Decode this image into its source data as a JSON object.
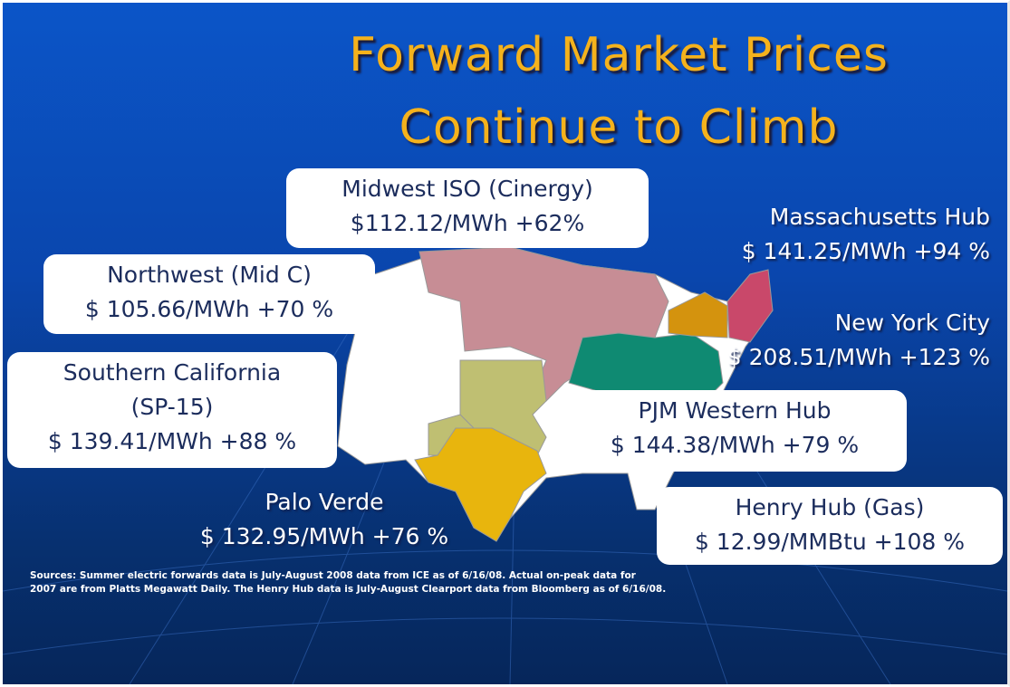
{
  "title": [
    "Forward Market Prices",
    "Continue to Climb"
  ],
  "callouts": [
    {
      "lines": [
        "Midwest ISO (Cinergy)",
        "$112.12/MWh  +62%"
      ]
    },
    {
      "lines": [
        "Massachusetts Hub",
        "$ 141.25/MWh  +94 %"
      ]
    },
    {
      "lines": [
        "Northwest (Mid C)",
        "$ 105.66/MWh  +70 %"
      ]
    },
    {
      "lines": [
        "New York City",
        "$ 208.51/MWh  +123 %"
      ]
    },
    {
      "lines": [
        "Southern California",
        "(SP-15)",
        "$ 139.41/MWh  +88 %"
      ]
    },
    {
      "lines": [
        "PJM Western Hub",
        "$ 144.38/MWh  +79 %"
      ]
    },
    {
      "lines": [
        "Palo Verde",
        "$ 132.95/MWh  +76 %"
      ]
    },
    {
      "lines": [
        "Henry Hub (Gas)",
        "$ 12.99/MMBtu +108 %"
      ]
    }
  ],
  "sources": [
    "Sources: Summer electric forwards data is July-August 2008 data from ICE as of 6/16/08. Actual on-peak data for",
    "2007 are from Platts Megawatt Daily. The Henry Hub data is July-August Clearport data from Bloomberg as of 6/16/08."
  ]
}
